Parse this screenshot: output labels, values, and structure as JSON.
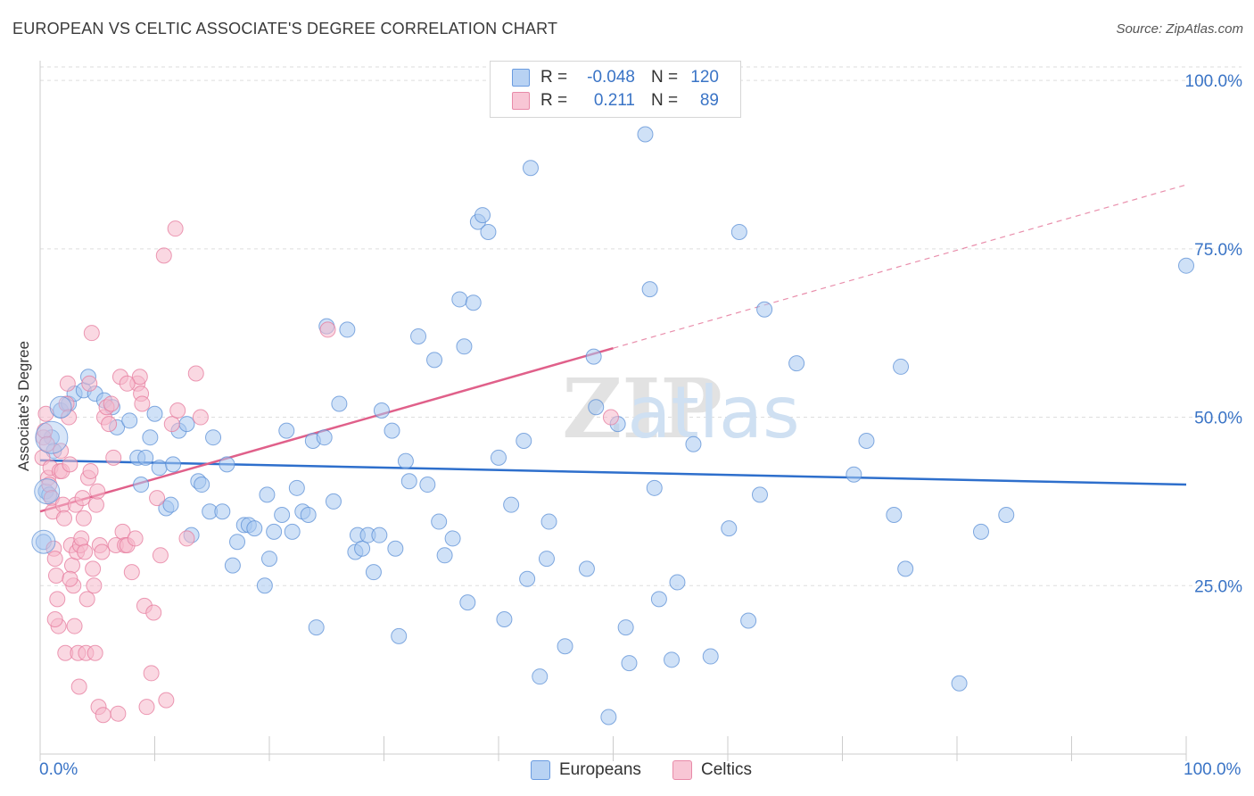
{
  "title": "EUROPEAN VS CELTIC ASSOCIATE'S DEGREE CORRELATION CHART",
  "source": "Source: ZipAtlas.com",
  "watermark": "ZIPatlas",
  "colors": {
    "europeans_fill": "#a8c8f0",
    "europeans_stroke": "#5b8fd6",
    "europeans_line": "#2e6fcc",
    "celtics_fill": "#f6b8cb",
    "celtics_stroke": "#e57a9c",
    "celtics_line": "#e0608a",
    "axis_text": "#3a74c6",
    "grid": "#dddddd"
  },
  "legend": {
    "rows": [
      {
        "r_label": "R =",
        "r_value": "-0.048",
        "n_label": "N =",
        "n_value": "120"
      },
      {
        "r_label": "R =",
        "r_value": "0.211",
        "n_label": "N =",
        "n_value": "89"
      }
    ]
  },
  "chart_data": {
    "type": "scatter",
    "title": "EUROPEAN VS CELTIC ASSOCIATE'S DEGREE CORRELATION CHART",
    "xlabel": "",
    "ylabel": "Associate's Degree",
    "xlim": [
      0,
      100
    ],
    "ylim": [
      0,
      102
    ],
    "x_tick_labels": [
      "0.0%",
      "100.0%"
    ],
    "y_tick_labels": [
      "100.0%",
      "75.0%",
      "50.0%",
      "25.0%"
    ],
    "y_tick_values": [
      100,
      75,
      50,
      25
    ],
    "legend_position": "bottom",
    "series": [
      {
        "name": "Europeans",
        "trend": {
          "x": [
            0,
            100
          ],
          "y": [
            43.6,
            40.0
          ],
          "solid_until": 100
        },
        "points": [
          [
            0.3,
            31.5
          ],
          [
            0.5,
            39
          ],
          [
            0.8,
            38.5
          ],
          [
            1.0,
            47
          ],
          [
            1.2,
            45
          ],
          [
            1.8,
            51
          ],
          [
            2.5,
            52
          ],
          [
            3,
            53.5
          ],
          [
            3.8,
            54
          ],
          [
            4.2,
            56
          ],
          [
            4.8,
            53.5
          ],
          [
            5.6,
            52.5
          ],
          [
            6.3,
            51.5
          ],
          [
            6.7,
            48.5
          ],
          [
            7.8,
            49.5
          ],
          [
            8.5,
            44
          ],
          [
            8.8,
            40
          ],
          [
            9.2,
            44
          ],
          [
            9.6,
            47
          ],
          [
            10,
            50.5
          ],
          [
            10.4,
            42.5
          ],
          [
            11,
            36.5
          ],
          [
            11.4,
            37
          ],
          [
            11.6,
            43
          ],
          [
            12.1,
            48
          ],
          [
            12.8,
            49
          ],
          [
            13.2,
            32.5
          ],
          [
            13.8,
            40.5
          ],
          [
            14.1,
            40
          ],
          [
            14.8,
            36
          ],
          [
            15.1,
            47
          ],
          [
            15.9,
            36
          ],
          [
            16.3,
            43
          ],
          [
            16.8,
            28
          ],
          [
            17.2,
            31.5
          ],
          [
            17.8,
            34
          ],
          [
            18.2,
            34
          ],
          [
            18.7,
            33.5
          ],
          [
            19.6,
            25
          ],
          [
            19.8,
            38.5
          ],
          [
            20,
            29
          ],
          [
            20.4,
            33
          ],
          [
            21.1,
            35.5
          ],
          [
            21.5,
            48
          ],
          [
            22,
            33
          ],
          [
            22.4,
            39.5
          ],
          [
            22.9,
            36
          ],
          [
            23.4,
            35.5
          ],
          [
            23.8,
            46.5
          ],
          [
            24.1,
            18.8
          ],
          [
            24.8,
            47
          ],
          [
            25,
            63.5
          ],
          [
            25.6,
            37.5
          ],
          [
            26.1,
            52
          ],
          [
            26.8,
            63
          ],
          [
            27.5,
            30
          ],
          [
            27.7,
            32.5
          ],
          [
            28.1,
            30.5
          ],
          [
            28.6,
            32.5
          ],
          [
            29.1,
            27
          ],
          [
            29.6,
            32.5
          ],
          [
            29.8,
            51
          ],
          [
            30.7,
            48
          ],
          [
            31,
            30.5
          ],
          [
            31.3,
            17.5
          ],
          [
            31.9,
            43.5
          ],
          [
            32.2,
            40.5
          ],
          [
            33,
            62
          ],
          [
            33.8,
            40
          ],
          [
            34.4,
            58.5
          ],
          [
            34.8,
            34.5
          ],
          [
            35.3,
            29.5
          ],
          [
            36,
            32
          ],
          [
            36.6,
            67.5
          ],
          [
            37,
            60.5
          ],
          [
            37.3,
            22.5
          ],
          [
            37.8,
            67
          ],
          [
            38.2,
            79
          ],
          [
            38.6,
            80
          ],
          [
            39.1,
            77.5
          ],
          [
            40,
            44
          ],
          [
            40.5,
            20
          ],
          [
            41.1,
            37
          ],
          [
            42.2,
            46.5
          ],
          [
            42.5,
            26
          ],
          [
            42.8,
            87
          ],
          [
            43.6,
            11.5
          ],
          [
            44.2,
            29
          ],
          [
            44.4,
            34.5
          ],
          [
            45.8,
            16
          ],
          [
            47.7,
            27.5
          ],
          [
            48.3,
            59
          ],
          [
            48.5,
            51.5
          ],
          [
            49.6,
            5.5
          ],
          [
            50.4,
            49
          ],
          [
            51.1,
            18.8
          ],
          [
            51.4,
            13.5
          ],
          [
            52.8,
            92
          ],
          [
            53.2,
            69
          ],
          [
            53.6,
            39.5
          ],
          [
            54,
            23
          ],
          [
            55.1,
            14
          ],
          [
            55.6,
            25.5
          ],
          [
            57,
            46
          ],
          [
            58.5,
            14.5
          ],
          [
            60.1,
            33.5
          ],
          [
            61,
            77.5
          ],
          [
            61.8,
            19.8
          ],
          [
            62.8,
            38.5
          ],
          [
            63.2,
            66
          ],
          [
            66,
            58
          ],
          [
            71,
            41.5
          ],
          [
            72.1,
            46.5
          ],
          [
            74.5,
            35.5
          ],
          [
            75.1,
            57.5
          ],
          [
            75.5,
            27.5
          ],
          [
            80.2,
            10.5
          ],
          [
            82.1,
            33
          ],
          [
            84.3,
            35.5
          ],
          [
            100,
            72.5
          ]
        ]
      },
      {
        "name": "Celtics",
        "trend": {
          "x": [
            0,
            100
          ],
          "y": [
            36,
            84.5
          ],
          "solid_until": 50
        },
        "points": [
          [
            0.2,
            44
          ],
          [
            0.3,
            47
          ],
          [
            0.4,
            48
          ],
          [
            0.5,
            50.5
          ],
          [
            0.6,
            46
          ],
          [
            0.7,
            41
          ],
          [
            0.8,
            40
          ],
          [
            0.9,
            42.5
          ],
          [
            1.0,
            38
          ],
          [
            1.1,
            36
          ],
          [
            1.2,
            30.5
          ],
          [
            1.3,
            29
          ],
          [
            1.4,
            26.5
          ],
          [
            1.5,
            23
          ],
          [
            1.6,
            19
          ],
          [
            1.7,
            42
          ],
          [
            1.8,
            45
          ],
          [
            1.9,
            42
          ],
          [
            2.0,
            37
          ],
          [
            2.1,
            35
          ],
          [
            2.2,
            15
          ],
          [
            2.3,
            52
          ],
          [
            2.4,
            55
          ],
          [
            2.5,
            50
          ],
          [
            2.6,
            43
          ],
          [
            2.7,
            31
          ],
          [
            2.8,
            28
          ],
          [
            2.9,
            25
          ],
          [
            3.0,
            19
          ],
          [
            3.1,
            37
          ],
          [
            3.2,
            30
          ],
          [
            3.3,
            15
          ],
          [
            3.4,
            10
          ],
          [
            3.5,
            31
          ],
          [
            3.6,
            32
          ],
          [
            3.7,
            38
          ],
          [
            3.8,
            35
          ],
          [
            3.9,
            30
          ],
          [
            4.0,
            15
          ],
          [
            4.1,
            23
          ],
          [
            4.2,
            41
          ],
          [
            4.3,
            55
          ],
          [
            4.4,
            42
          ],
          [
            4.5,
            62.5
          ],
          [
            4.6,
            27.5
          ],
          [
            4.7,
            25
          ],
          [
            4.8,
            15
          ],
          [
            4.9,
            37
          ],
          [
            5.0,
            39
          ],
          [
            5.2,
            31
          ],
          [
            5.4,
            30
          ],
          [
            5.6,
            50
          ],
          [
            5.8,
            51.5
          ],
          [
            6.0,
            49
          ],
          [
            6.2,
            52
          ],
          [
            6.4,
            44
          ],
          [
            6.6,
            31
          ],
          [
            6.8,
            6
          ],
          [
            7.0,
            56
          ],
          [
            7.2,
            33
          ],
          [
            7.4,
            31
          ],
          [
            7.6,
            31
          ],
          [
            8.0,
            27
          ],
          [
            8.3,
            32
          ],
          [
            8.5,
            55
          ],
          [
            8.7,
            56
          ],
          [
            8.8,
            53.5
          ],
          [
            8.9,
            52
          ],
          [
            9.1,
            22
          ],
          [
            9.3,
            7
          ],
          [
            10.2,
            38
          ],
          [
            10.5,
            29.5
          ],
          [
            11.0,
            8
          ],
          [
            11.5,
            49
          ],
          [
            12.0,
            51
          ],
          [
            13.6,
            56.5
          ],
          [
            14.0,
            50
          ],
          [
            10.8,
            74
          ],
          [
            11.8,
            78
          ],
          [
            7.6,
            55
          ],
          [
            9.7,
            12
          ],
          [
            9.9,
            21
          ],
          [
            12.8,
            32
          ],
          [
            5.1,
            7
          ],
          [
            25.1,
            63
          ],
          [
            49.8,
            50
          ],
          [
            5.5,
            5.8
          ],
          [
            2.6,
            26
          ],
          [
            1.3,
            20
          ]
        ]
      }
    ]
  }
}
